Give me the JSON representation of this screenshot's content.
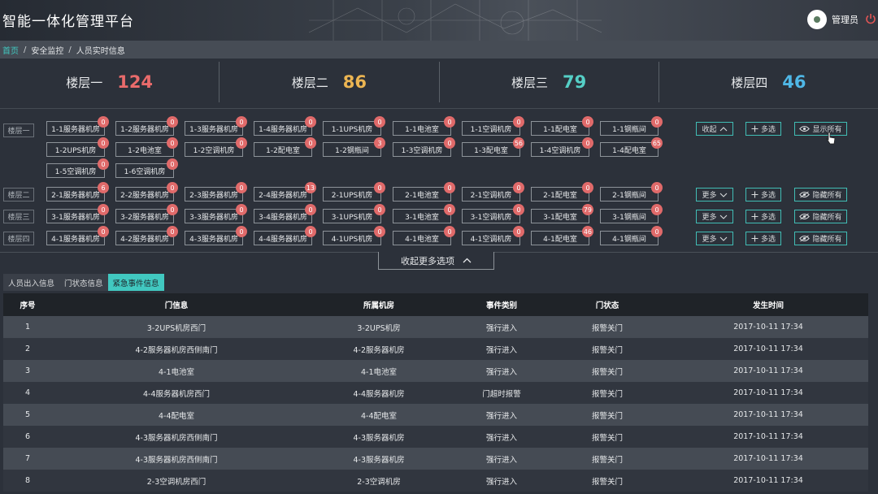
{
  "app": {
    "title": "智能一体化管理平台",
    "user": "管理员"
  },
  "breadcrumb": {
    "home": "首页",
    "sep": "/",
    "level1": "安全监控",
    "level2": "人员实时信息"
  },
  "stats": [
    {
      "label": "楼层一",
      "value": "124",
      "color": "#e96b6b"
    },
    {
      "label": "楼层二",
      "value": "86",
      "color": "#ecb552"
    },
    {
      "label": "楼层三",
      "value": "79",
      "color": "#55cfc6"
    },
    {
      "label": "楼层四",
      "value": "46",
      "color": "#4fb7e6"
    }
  ],
  "floors": {
    "f1": {
      "label": "楼层一",
      "rooms": [
        {
          "name": "1-1服务器机房",
          "count": "0"
        },
        {
          "name": "1-2服务器机房",
          "count": "0"
        },
        {
          "name": "1-3服务器机房",
          "count": "0"
        },
        {
          "name": "1-4服务器机房",
          "count": "0"
        },
        {
          "name": "1-1UPS机房",
          "count": "0"
        },
        {
          "name": "1-1电池室",
          "count": "0"
        },
        {
          "name": "1-1空调机房",
          "count": "0"
        },
        {
          "name": "1-1配电室",
          "count": "0"
        },
        {
          "name": "1-1钢瓶间",
          "count": "0"
        },
        {
          "name": "1-2UPS机房",
          "count": "0"
        },
        {
          "name": "1-2电池室",
          "count": "0"
        },
        {
          "name": "1-2空调机房",
          "count": "0"
        },
        {
          "name": "1-2配电室",
          "count": "0"
        },
        {
          "name": "1-2钢瓶间",
          "count": "3"
        },
        {
          "name": "1-3空调机房",
          "count": "0"
        },
        {
          "name": "1-3配电室",
          "count": "56"
        },
        {
          "name": "1-4空调机房",
          "count": "0"
        },
        {
          "name": "1-4配电室",
          "count": "65"
        },
        {
          "name": "1-5空调机房",
          "count": "0"
        },
        {
          "name": "1-6空调机房",
          "count": "0"
        }
      ],
      "toggle": "收起",
      "multi": "多选",
      "visibility": "显示所有"
    },
    "f2": {
      "label": "楼层二",
      "rooms": [
        {
          "name": "2-1服务器机房",
          "count": "6"
        },
        {
          "name": "2-2服务器机房",
          "count": "0"
        },
        {
          "name": "2-3服务器机房",
          "count": "0"
        },
        {
          "name": "2-4服务器机房",
          "count": "13"
        },
        {
          "name": "2-1UPS机房",
          "count": "0"
        },
        {
          "name": "2-1电池室",
          "count": "0"
        },
        {
          "name": "2-1空调机房",
          "count": "0"
        },
        {
          "name": "2-1配电室",
          "count": "0"
        },
        {
          "name": "2-1钢瓶间",
          "count": "0"
        }
      ],
      "toggle": "更多",
      "multi": "多选",
      "visibility": "隐藏所有"
    },
    "f3": {
      "label": "楼层三",
      "rooms": [
        {
          "name": "3-1服务器机房",
          "count": "0"
        },
        {
          "name": "3-2服务器机房",
          "count": "0"
        },
        {
          "name": "3-3服务器机房",
          "count": "0"
        },
        {
          "name": "3-4服务器机房",
          "count": "0"
        },
        {
          "name": "3-1UPS机房",
          "count": "0"
        },
        {
          "name": "3-1电池室",
          "count": "0"
        },
        {
          "name": "3-1空调机房",
          "count": "0"
        },
        {
          "name": "3-1配电室",
          "count": "79"
        },
        {
          "name": "3-1钢瓶间",
          "count": "0"
        }
      ],
      "toggle": "更多",
      "multi": "多选",
      "visibility": "隐藏所有"
    },
    "f4": {
      "label": "楼层四",
      "rooms": [
        {
          "name": "4-1服务器机房",
          "count": "0"
        },
        {
          "name": "4-2服务器机房",
          "count": "0"
        },
        {
          "name": "4-3服务器机房",
          "count": "0"
        },
        {
          "name": "4-4服务器机房",
          "count": "0"
        },
        {
          "name": "4-1UPS机房",
          "count": "0"
        },
        {
          "name": "4-1电池室",
          "count": "0"
        },
        {
          "name": "4-1空调机房",
          "count": "0"
        },
        {
          "name": "4-1配电室",
          "count": "46"
        },
        {
          "name": "4-1钢瓶间",
          "count": "0"
        }
      ],
      "toggle": "更多",
      "multi": "多选",
      "visibility": "隐藏所有"
    }
  },
  "collapse_more": "收起更多选项",
  "tabs": [
    "人员出入信息",
    "门状态信息",
    "紧急事件信息"
  ],
  "table": {
    "headers": [
      "序号",
      "门信息",
      "所属机房",
      "事件类别",
      "门状态",
      "发生时间"
    ],
    "rows": [
      [
        "1",
        "3-2UPS机房西门",
        "3-2UPS机房",
        "强行进入",
        "报警关门",
        "2017-10-11 17:34"
      ],
      [
        "2",
        "4-2服务器机房西侧南门",
        "4-2服务器机房",
        "强行进入",
        "报警关门",
        "2017-10-11 17:34"
      ],
      [
        "3",
        "4-1电池室",
        "4-1电池室",
        "强行进入",
        "报警关门",
        "2017-10-11 17:34"
      ],
      [
        "4",
        "4-4服务器机房西门",
        "4-4服务器机房",
        "门超时报警",
        "报警关门",
        "2017-10-11 17:34"
      ],
      [
        "5",
        "4-4配电室",
        "4-4配电室",
        "强行进入",
        "报警关门",
        "2017-10-11 17:34"
      ],
      [
        "6",
        "4-3服务器机房西侧南门",
        "4-3服务器机房",
        "强行进入",
        "报警关门",
        "2017-10-11 17:34"
      ],
      [
        "7",
        "4-3服务器机房西侧南门",
        "4-3服务器机房",
        "强行进入",
        "报警关门",
        "2017-10-11 17:34"
      ],
      [
        "8",
        "2-3空调机房西门",
        "2-3空调机房",
        "强行进入",
        "报警关门",
        "2017-10-11 17:34"
      ]
    ]
  },
  "colors": {
    "accent": "#41c8c0",
    "badge": "#e06a6a"
  }
}
